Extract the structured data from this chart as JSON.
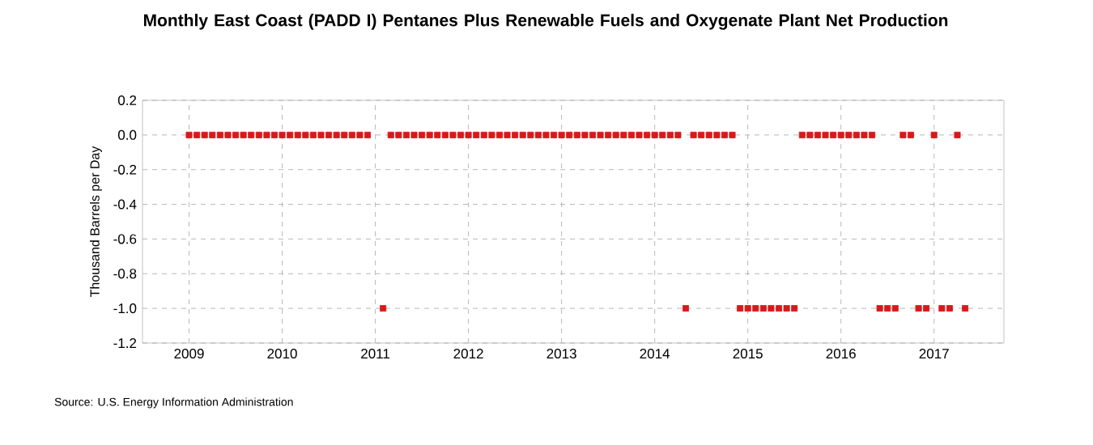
{
  "chart_data": {
    "type": "scatter",
    "title": "Monthly East Coast (PADD I) Pentanes Plus Renewable Fuels and Oxygenate Plant Net Production",
    "ylabel": "Thousand Barrels per Day",
    "annotations": [
      "Source: U.S. Energy Information Administration"
    ],
    "x": [
      "2009-01",
      "2009-02",
      "2009-03",
      "2009-04",
      "2009-05",
      "2009-06",
      "2009-07",
      "2009-08",
      "2009-09",
      "2009-10",
      "2009-11",
      "2009-12",
      "2010-01",
      "2010-02",
      "2010-03",
      "2010-04",
      "2010-05",
      "2010-06",
      "2010-07",
      "2010-08",
      "2010-09",
      "2010-10",
      "2010-11",
      "2010-12",
      "2011-01",
      "2011-02",
      "2011-03",
      "2011-04",
      "2011-05",
      "2011-06",
      "2011-07",
      "2011-08",
      "2011-09",
      "2011-10",
      "2011-11",
      "2011-12",
      "2012-01",
      "2012-02",
      "2012-03",
      "2012-04",
      "2012-05",
      "2012-06",
      "2012-07",
      "2012-08",
      "2012-09",
      "2012-10",
      "2012-11",
      "2012-12",
      "2013-01",
      "2013-02",
      "2013-03",
      "2013-04",
      "2013-05",
      "2013-06",
      "2013-07",
      "2013-08",
      "2013-09",
      "2013-10",
      "2013-11",
      "2013-12",
      "2014-01",
      "2014-02",
      "2014-03",
      "2014-04",
      "2014-05",
      "2014-06",
      "2014-07",
      "2014-08",
      "2014-09",
      "2014-10",
      "2014-11",
      "2014-12",
      "2015-01",
      "2015-02",
      "2015-03",
      "2015-04",
      "2015-05",
      "2015-06",
      "2015-07",
      "2015-08",
      "2015-09",
      "2015-10",
      "2015-11",
      "2015-12",
      "2016-01",
      "2016-02",
      "2016-03",
      "2016-04",
      "2016-05",
      "2016-06",
      "2016-07",
      "2016-08",
      "2016-09",
      "2016-10",
      "2016-11",
      "2016-12",
      "2017-01",
      "2017-02",
      "2017-03",
      "2017-04",
      "2017-05"
    ],
    "series": [
      {
        "color": "#d7191c",
        "values": [
          0,
          0,
          0,
          0,
          0,
          0,
          0,
          0,
          0,
          0,
          0,
          0,
          0,
          0,
          0,
          0,
          0,
          0,
          0,
          0,
          0,
          0,
          0,
          0,
          null,
          -1,
          0,
          0,
          0,
          0,
          0,
          0,
          0,
          0,
          0,
          0,
          0,
          0,
          0,
          0,
          0,
          0,
          0,
          0,
          0,
          0,
          0,
          0,
          0,
          0,
          0,
          0,
          0,
          0,
          0,
          0,
          0,
          0,
          0,
          0,
          0,
          0,
          0,
          0,
          -1,
          0,
          0,
          0,
          0,
          0,
          0,
          -1,
          -1,
          -1,
          -1,
          -1,
          -1,
          -1,
          -1,
          0,
          0,
          0,
          0,
          0,
          0,
          0,
          0,
          0,
          0,
          -1,
          -1,
          -1,
          0,
          0,
          -1,
          -1,
          0,
          -1,
          -1,
          0,
          -1
        ]
      }
    ],
    "xlim": [
      "2008-07",
      "2017-10"
    ],
    "xticks": [
      "2009",
      "2010",
      "2011",
      "2012",
      "2013",
      "2014",
      "2015",
      "2016",
      "2017"
    ],
    "ylim": [
      -1.2,
      0.2
    ],
    "yticks": [
      {
        "value": -1.2,
        "label": "-1.2"
      },
      {
        "value": -1,
        "label": "-1.0"
      },
      {
        "value": -0.8,
        "label": "-0.8"
      },
      {
        "value": -0.6,
        "label": "-0.6"
      },
      {
        "value": -0.4,
        "label": "-0.4"
      },
      {
        "value": -0.2,
        "label": "-0.2"
      },
      {
        "value": 0,
        "label": "0.0"
      },
      {
        "value": 0.2,
        "label": "0.2"
      }
    ],
    "grid": true,
    "marker": "square"
  }
}
